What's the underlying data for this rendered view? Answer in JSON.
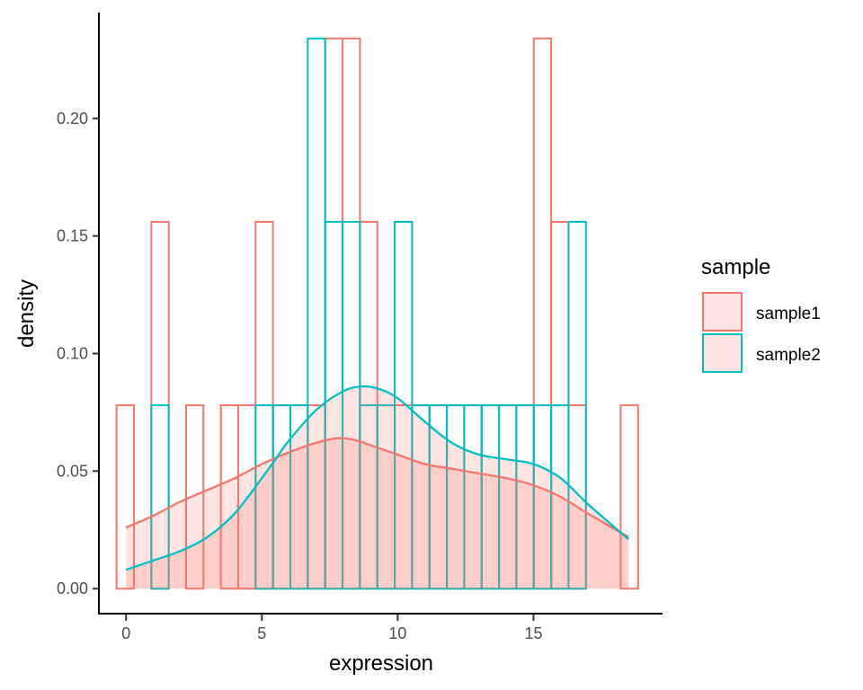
{
  "chart_data": {
    "type": "histogram-density",
    "xlabel": "expression",
    "ylabel": "density",
    "xlim": [
      -1,
      19.75
    ],
    "ylim": [
      -0.011,
      0.245
    ],
    "x_ticks": [
      0,
      5,
      10,
      15
    ],
    "x_tick_labels": [
      "0",
      "5",
      "10",
      "15"
    ],
    "y_ticks": [
      0,
      0.05,
      0.1,
      0.15,
      0.2
    ],
    "y_tick_labels": [
      "0.00",
      "0.05",
      "0.10",
      "0.15",
      "0.20"
    ],
    "grid": false,
    "legend": {
      "title": "sample",
      "position": "right",
      "entries": [
        "sample1",
        "sample2"
      ]
    },
    "bin_edges": [
      -0.35,
      0.29,
      0.93,
      1.57,
      2.21,
      2.85,
      3.49,
      4.13,
      4.77,
      5.41,
      6.05,
      6.69,
      7.33,
      7.97,
      8.61,
      9.25,
      9.89,
      10.53,
      11.17,
      11.81,
      12.45,
      13.09,
      13.73,
      14.37,
      15.01,
      15.65,
      16.29,
      16.93,
      17.57,
      18.21,
      18.85
    ],
    "series": [
      {
        "name": "sample1",
        "color": "#F8766D",
        "fill": "#F8766D",
        "histogram_density": [
          0.078,
          0,
          0.156,
          0,
          0.078,
          0,
          0.078,
          0.078,
          0.156,
          0.078,
          0.078,
          0.078,
          0.234,
          0.234,
          0.156,
          0.078,
          0.078,
          0.078,
          0.078,
          0.078,
          0.078,
          0.078,
          0.078,
          0.078,
          0.234,
          0.156,
          0.078,
          0,
          0,
          0.078
        ],
        "density_x": [
          0,
          1,
          2,
          3,
          4,
          5,
          6,
          7,
          7.8,
          8.5,
          9,
          10,
          11,
          12,
          13,
          14,
          15,
          16,
          17,
          18.5
        ],
        "density_y": [
          0.026,
          0.031,
          0.037,
          0.042,
          0.047,
          0.053,
          0.058,
          0.062,
          0.064,
          0.063,
          0.061,
          0.057,
          0.053,
          0.051,
          0.049,
          0.047,
          0.044,
          0.039,
          0.032,
          0.022
        ]
      },
      {
        "name": "sample2",
        "color": "#00BFC4",
        "fill": "#00BFC4",
        "histogram_density": [
          0,
          0,
          0.078,
          0,
          0,
          0,
          0,
          0,
          0.078,
          0.078,
          0.078,
          0.234,
          0.156,
          0.156,
          0.078,
          0.078,
          0.156,
          0.078,
          0.078,
          0.078,
          0.078,
          0.078,
          0.078,
          0.078,
          0.078,
          0.078,
          0.156,
          0,
          0,
          0
        ],
        "density_x": [
          0,
          1,
          2,
          3,
          4,
          5,
          5.5,
          6,
          7,
          8,
          8.7,
          9.3,
          10,
          11,
          12,
          13,
          14,
          15,
          16,
          17,
          18.5
        ],
        "density_y": [
          0.008,
          0.012,
          0.016,
          0.022,
          0.032,
          0.047,
          0.055,
          0.063,
          0.076,
          0.084,
          0.086,
          0.085,
          0.081,
          0.071,
          0.062,
          0.057,
          0.055,
          0.053,
          0.047,
          0.036,
          0.021
        ]
      }
    ]
  }
}
